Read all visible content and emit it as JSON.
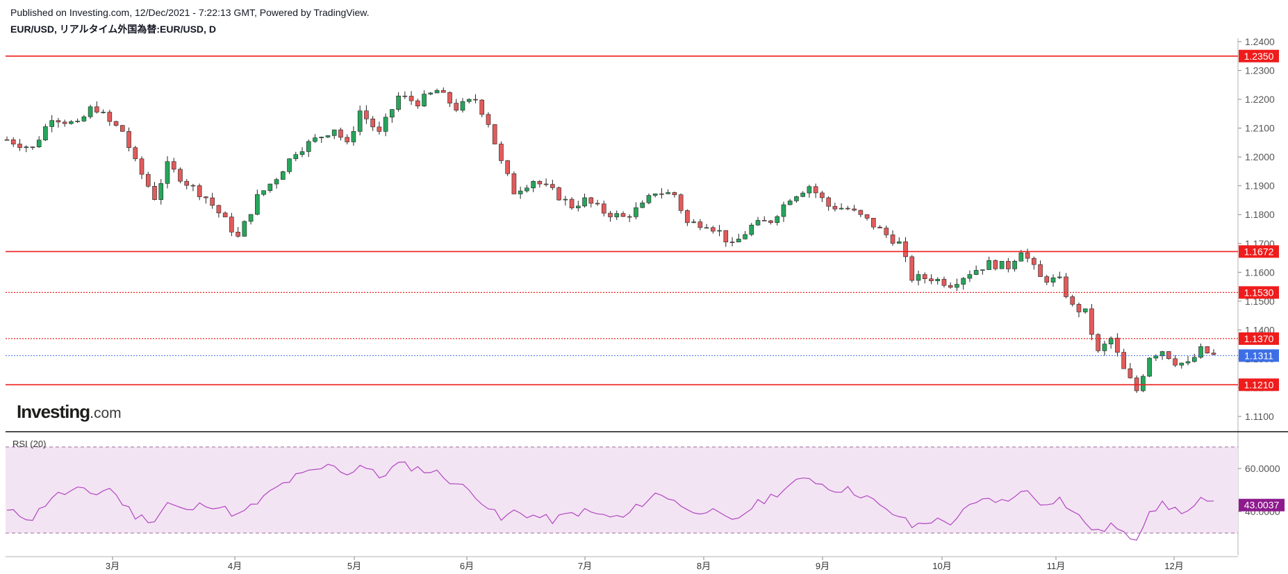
{
  "header": {
    "published": "Published on Investing.com, 12/Dec/2021 - 7:22:13 GMT, Powered by TradingView.",
    "symbol": "EUR/USD, リアルタイム外国為替:EUR/USD, D"
  },
  "logo": {
    "main": "Investing",
    "suffix": ".com"
  },
  "colors": {
    "up": "#26a65b",
    "down": "#e25b5b",
    "level": "#ef1c1c",
    "current": "#3d6ee6",
    "rsi_line": "#b146c2",
    "rsi_band": "#f3e4f3",
    "rsi_badge": "#8e1a8e"
  },
  "chart_data": [
    {
      "type": "candlestick",
      "title": "EUR/USD, リアルタイム外国為替:EUR/USD, D",
      "xlabel": "",
      "ylabel": "",
      "x_months": [
        "3月",
        "4月",
        "5月",
        "6月",
        "7月",
        "8月",
        "9月",
        "10月",
        "11月",
        "12月"
      ],
      "y_ticks": [
        "1.1100",
        "1.1200",
        "1.1300",
        "1.1400",
        "1.1500",
        "1.1600",
        "1.1700",
        "1.1800",
        "1.1900",
        "1.2000",
        "1.2100",
        "1.2200",
        "1.2300",
        "1.2400"
      ],
      "ylim": [
        1.105,
        1.24
      ],
      "grid": false,
      "levels": [
        {
          "label": "1.2350",
          "value": 1.235,
          "style": "solid"
        },
        {
          "label": "1.1672",
          "value": 1.1672,
          "style": "solid"
        },
        {
          "label": "1.1530",
          "value": 1.153,
          "style": "dotted"
        },
        {
          "label": "1.1370",
          "value": 1.137,
          "style": "dotted"
        },
        {
          "label": "1.1210",
          "value": 1.121,
          "style": "solid"
        }
      ],
      "last_price": {
        "label": "1.1311",
        "value": 1.1311
      },
      "close_path": [
        [
          0,
          1.206
        ],
        [
          8,
          1.203
        ],
        [
          14,
          1.214
        ],
        [
          22,
          1.211
        ],
        [
          27,
          1.218
        ],
        [
          32,
          1.212
        ],
        [
          36,
          1.209
        ],
        [
          40,
          1.198
        ],
        [
          46,
          1.186
        ],
        [
          50,
          1.197
        ],
        [
          56,
          1.191
        ],
        [
          62,
          1.186
        ],
        [
          68,
          1.178
        ],
        [
          72,
          1.172
        ],
        [
          78,
          1.186
        ],
        [
          84,
          1.193
        ],
        [
          90,
          1.202
        ],
        [
          96,
          1.206
        ],
        [
          102,
          1.21
        ],
        [
          106,
          1.204
        ],
        [
          110,
          1.216
        ],
        [
          116,
          1.208
        ],
        [
          122,
          1.221
        ],
        [
          128,
          1.219
        ],
        [
          134,
          1.223
        ],
        [
          140,
          1.217
        ],
        [
          146,
          1.22
        ],
        [
          150,
          1.212
        ],
        [
          154,
          1.198
        ],
        [
          158,
          1.188
        ],
        [
          164,
          1.192
        ],
        [
          170,
          1.188
        ],
        [
          176,
          1.183
        ],
        [
          180,
          1.185
        ],
        [
          186,
          1.181
        ],
        [
          192,
          1.179
        ],
        [
          198,
          1.183
        ],
        [
          202,
          1.188
        ],
        [
          208,
          1.187
        ],
        [
          212,
          1.177
        ],
        [
          218,
          1.177
        ],
        [
          222,
          1.174
        ],
        [
          226,
          1.169
        ],
        [
          232,
          1.176
        ],
        [
          238,
          1.178
        ],
        [
          244,
          1.186
        ],
        [
          250,
          1.19
        ],
        [
          256,
          1.183
        ],
        [
          262,
          1.182
        ],
        [
          268,
          1.178
        ],
        [
          274,
          1.173
        ],
        [
          278,
          1.17
        ],
        [
          282,
          1.158
        ],
        [
          288,
          1.158
        ],
        [
          294,
          1.156
        ],
        [
          300,
          1.16
        ],
        [
          306,
          1.163
        ],
        [
          312,
          1.162
        ],
        [
          316,
          1.168
        ],
        [
          322,
          1.158
        ],
        [
          328,
          1.157
        ],
        [
          332,
          1.148
        ],
        [
          336,
          1.146
        ],
        [
          340,
          1.132
        ],
        [
          344,
          1.137
        ],
        [
          348,
          1.126
        ],
        [
          352,
          1.119
        ],
        [
          356,
          1.131
        ],
        [
          360,
          1.133
        ],
        [
          364,
          1.129
        ],
        [
          368,
          1.128
        ],
        [
          372,
          1.133
        ],
        [
          376,
          1.1311
        ]
      ]
    },
    {
      "type": "line",
      "title": "RSI (20)",
      "xlabel": "",
      "ylabel": "",
      "y_ticks": [
        "40.0000",
        "60.0000"
      ],
      "ylim": [
        25,
        80
      ],
      "band": [
        30,
        70
      ],
      "last_value": {
        "label": "43.0037",
        "value": 43.0037
      },
      "rsi_path": [
        [
          0,
          40
        ],
        [
          8,
          37
        ],
        [
          14,
          47
        ],
        [
          22,
          50
        ],
        [
          27,
          48
        ],
        [
          32,
          51
        ],
        [
          36,
          44
        ],
        [
          40,
          38
        ],
        [
          46,
          36
        ],
        [
          50,
          44
        ],
        [
          56,
          40
        ],
        [
          62,
          44
        ],
        [
          68,
          41
        ],
        [
          72,
          38
        ],
        [
          78,
          44
        ],
        [
          84,
          51
        ],
        [
          90,
          56
        ],
        [
          96,
          59
        ],
        [
          102,
          62
        ],
        [
          106,
          57
        ],
        [
          110,
          62
        ],
        [
          116,
          56
        ],
        [
          122,
          62
        ],
        [
          128,
          60
        ],
        [
          134,
          58
        ],
        [
          140,
          53
        ],
        [
          146,
          48
        ],
        [
          150,
          42
        ],
        [
          154,
          36
        ],
        [
          158,
          40
        ],
        [
          164,
          38
        ],
        [
          170,
          36
        ],
        [
          176,
          39
        ],
        [
          180,
          40
        ],
        [
          186,
          38
        ],
        [
          192,
          37
        ],
        [
          198,
          44
        ],
        [
          202,
          48
        ],
        [
          208,
          46
        ],
        [
          212,
          40
        ],
        [
          218,
          41
        ],
        [
          222,
          38
        ],
        [
          226,
          35
        ],
        [
          232,
          42
        ],
        [
          238,
          47
        ],
        [
          244,
          52
        ],
        [
          250,
          56
        ],
        [
          256,
          51
        ],
        [
          262,
          50
        ],
        [
          268,
          47
        ],
        [
          274,
          40
        ],
        [
          278,
          38
        ],
        [
          282,
          33
        ],
        [
          288,
          36
        ],
        [
          294,
          35
        ],
        [
          300,
          42
        ],
        [
          306,
          46
        ],
        [
          312,
          44
        ],
        [
          316,
          51
        ],
        [
          322,
          44
        ],
        [
          328,
          46
        ],
        [
          332,
          40
        ],
        [
          336,
          35
        ],
        [
          340,
          30
        ],
        [
          344,
          34
        ],
        [
          348,
          29
        ],
        [
          352,
          28
        ],
        [
          356,
          41
        ],
        [
          360,
          43
        ],
        [
          364,
          41
        ],
        [
          368,
          40
        ],
        [
          372,
          45
        ],
        [
          376,
          43
        ]
      ]
    }
  ]
}
